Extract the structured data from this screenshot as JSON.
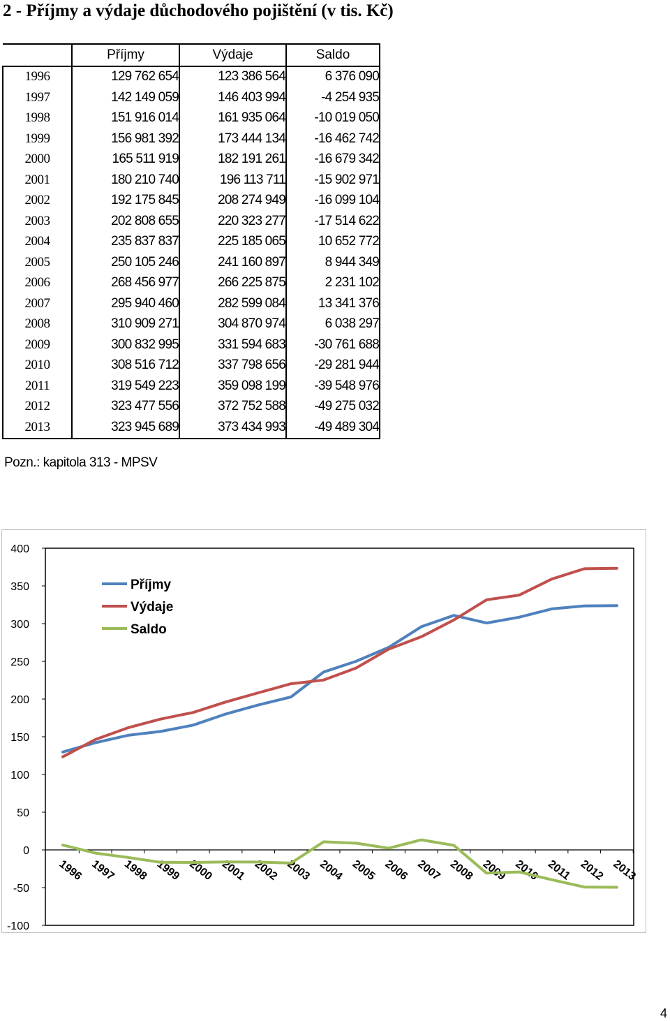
{
  "title": "2 - Příjmy a výdaje důchodového pojištění (v tis. Kč)",
  "table": {
    "headers": [
      "",
      "Příjmy",
      "Výdaje",
      "Saldo"
    ],
    "rows": [
      [
        "1996",
        "129 762 654",
        "123 386 564",
        "6 376 090"
      ],
      [
        "1997",
        "142 149 059",
        "146 403 994",
        "-4 254 935"
      ],
      [
        "1998",
        "151 916 014",
        "161 935 064",
        "-10 019 050"
      ],
      [
        "1999",
        "156 981 392",
        "173 444 134",
        "-16 462 742"
      ],
      [
        "2000",
        "165 511 919",
        "182 191 261",
        "-16 679 342"
      ],
      [
        "2001",
        "180 210 740",
        "196 113 711",
        "-15 902 971"
      ],
      [
        "2002",
        "192 175 845",
        "208 274 949",
        "-16 099 104"
      ],
      [
        "2003",
        "202 808 655",
        "220 323 277",
        "-17 514 622"
      ],
      [
        "2004",
        "235 837 837",
        "225 185 065",
        "10 652 772"
      ],
      [
        "2005",
        "250 105 246",
        "241 160 897",
        "8 944 349"
      ],
      [
        "2006",
        "268 456 977",
        "266 225 875",
        "2 231 102"
      ],
      [
        "2007",
        "295 940 460",
        "282 599 084",
        "13 341 376"
      ],
      [
        "2008",
        "310 909 271",
        "304 870 974",
        "6 038 297"
      ],
      [
        "2009",
        "300 832 995",
        "331 594 683",
        "-30 761 688"
      ],
      [
        "2010",
        "308 516 712",
        "337 798 656",
        "-29 281 944"
      ],
      [
        "2011",
        "319 549 223",
        "359 098 199",
        "-39 548 976"
      ],
      [
        "2012",
        "323 477 556",
        "372 752 588",
        "-49 275 032"
      ],
      [
        "2013",
        "323 945 689",
        "373 434 993",
        "-49 489 304"
      ]
    ]
  },
  "note": "Pozn.: kapitola 313 - MPSV",
  "page_number": "4",
  "chart_data": {
    "type": "line",
    "categories": [
      "1996",
      "1997",
      "1998",
      "1999",
      "2000",
      "2001",
      "2002",
      "2003",
      "2004",
      "2005",
      "2006",
      "2007",
      "2008",
      "2009",
      "2010",
      "2011",
      "2012",
      "2013"
    ],
    "y_ticks": [
      "400",
      "350",
      "300",
      "250",
      "200",
      "150",
      "100",
      "50",
      "0",
      "-50",
      "-100"
    ],
    "ylim": [
      -100,
      400
    ],
    "grid": false,
    "legend_position": "top-left",
    "series": [
      {
        "name": "Příjmy",
        "color": "#4f81bd",
        "values": [
          129.8,
          142.1,
          151.9,
          157.0,
          165.5,
          180.2,
          192.2,
          202.8,
          235.8,
          250.1,
          268.5,
          295.9,
          310.9,
          300.8,
          308.5,
          319.5,
          323.5,
          323.9
        ]
      },
      {
        "name": "Výdaje",
        "color": "#c0504d",
        "values": [
          123.4,
          146.4,
          161.9,
          173.4,
          182.2,
          196.1,
          208.3,
          220.3,
          225.2,
          241.2,
          266.2,
          282.6,
          304.9,
          331.6,
          337.8,
          359.1,
          372.8,
          373.4
        ]
      },
      {
        "name": "Saldo",
        "color": "#9bbb59",
        "values": [
          6.4,
          -4.3,
          -10.0,
          -16.5,
          -16.7,
          -15.9,
          -16.1,
          -17.5,
          10.7,
          8.9,
          2.2,
          13.3,
          6.0,
          -30.8,
          -29.3,
          -39.5,
          -49.3,
          -49.5
        ]
      }
    ]
  }
}
